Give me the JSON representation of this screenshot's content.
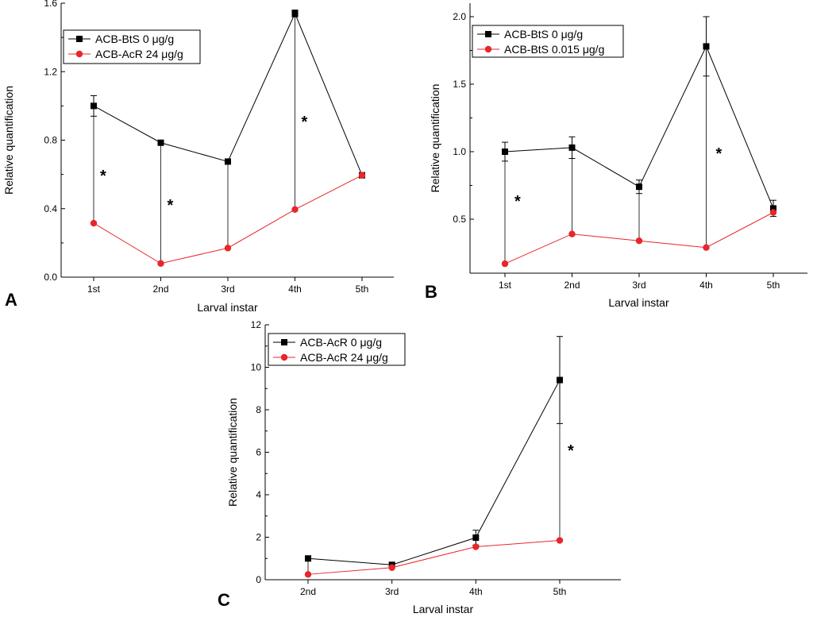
{
  "chart_data": [
    {
      "type": "line",
      "panel": "A",
      "xlabel": "Larval instar",
      "ylabel": "Relative quantification",
      "categories": [
        "1st",
        "2nd",
        "3rd",
        "4th",
        "5th"
      ],
      "ylim": [
        0,
        1.6
      ],
      "yticks": [
        "0.0",
        "0.4",
        "0.8",
        "1.2",
        "1.6"
      ],
      "series": [
        {
          "name": "ACB-BtS 0 μg/g",
          "color": "#000000",
          "marker": "square",
          "values": [
            1.0,
            0.785,
            0.675,
            1.54,
            0.595
          ],
          "errors": [
            0.06,
            0.01,
            0.0,
            0.02,
            0.0
          ]
        },
        {
          "name": "ACB-AcR 24 μg/g",
          "color": "#e8262b",
          "marker": "circle",
          "values": [
            0.315,
            0.08,
            0.17,
            0.395,
            0.595
          ],
          "errors": [
            0,
            0,
            0,
            0,
            0
          ]
        }
      ],
      "significance": [
        "*",
        "*",
        "",
        "*",
        ""
      ],
      "legend": "top-left"
    },
    {
      "type": "line",
      "panel": "B",
      "xlabel": "Larval instar",
      "ylabel": "Relative quantification",
      "categories": [
        "1st",
        "2nd",
        "3rd",
        "4th",
        "5th"
      ],
      "ylim": [
        0.1,
        2.1
      ],
      "yticks": [
        "0.5",
        "1.0",
        "1.5",
        "2.0"
      ],
      "series": [
        {
          "name": "ACB-BtS 0 μg/g",
          "color": "#000000",
          "marker": "square",
          "values": [
            1.0,
            1.03,
            0.74,
            1.78,
            0.58
          ],
          "errors": [
            0.07,
            0.08,
            0.05,
            0.22,
            0.06
          ]
        },
        {
          "name": "ACB-BtS 0.015 μg/g",
          "color": "#e8262b",
          "marker": "circle",
          "values": [
            0.17,
            0.39,
            0.34,
            0.29,
            0.55
          ],
          "errors": [
            0,
            0,
            0,
            0,
            0
          ]
        }
      ],
      "significance": [
        "*",
        "",
        "",
        "*",
        ""
      ],
      "legend": "top-left"
    },
    {
      "type": "line",
      "panel": "C",
      "xlabel": "Larval instar",
      "ylabel": "Relative quantification",
      "categories": [
        "2nd",
        "3rd",
        "4th",
        "5th"
      ],
      "ylim": [
        0,
        12
      ],
      "yticks": [
        "0",
        "2",
        "4",
        "6",
        "8",
        "10",
        "12"
      ],
      "series": [
        {
          "name": "ACB-AcR 0 μg/g",
          "color": "#000000",
          "marker": "square",
          "values": [
            1.0,
            0.7,
            1.98,
            9.4
          ],
          "errors": [
            0,
            0,
            0.35,
            2.05
          ]
        },
        {
          "name": "ACB-AcR 24 μg/g",
          "color": "#e8262b",
          "marker": "circle",
          "values": [
            0.25,
            0.57,
            1.55,
            1.85
          ],
          "errors": [
            0,
            0,
            0,
            0
          ]
        }
      ],
      "significance": [
        "",
        "",
        "",
        "*"
      ],
      "legend": "top-left"
    }
  ]
}
